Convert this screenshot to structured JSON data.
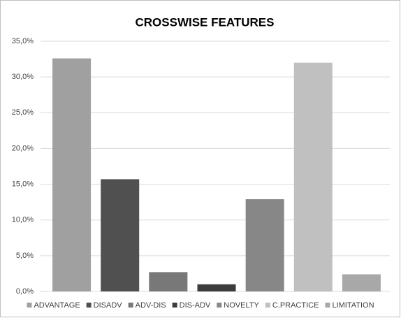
{
  "chart_data": {
    "type": "bar",
    "title": "CROSSWISE FEATURES",
    "categories": [
      "ADVANTAGE",
      "DISADV",
      "ADV-DIS",
      "DIS-ADV",
      "NOVELTY",
      "C.PRACTICE",
      "LIMITATION"
    ],
    "values": [
      32.6,
      15.7,
      2.7,
      1.0,
      12.9,
      32.0,
      2.4
    ],
    "colors": [
      "#a0a0a0",
      "#505050",
      "#787878",
      "#3c3c3c",
      "#878787",
      "#c0c0c0",
      "#a8a8a8"
    ],
    "ylim": [
      0,
      35
    ],
    "yticks": [
      {
        "value": 0,
        "label": "0,0%"
      },
      {
        "value": 5,
        "label": "5,0%"
      },
      {
        "value": 10,
        "label": "10,0%"
      },
      {
        "value": 15,
        "label": "15,0%"
      },
      {
        "value": 20,
        "label": "20,0%"
      },
      {
        "value": 25,
        "label": "25,0%"
      },
      {
        "value": 30,
        "label": "30,0%"
      },
      {
        "value": 35,
        "label": "35,0%"
      }
    ],
    "grid": true,
    "legend": "bottom"
  }
}
